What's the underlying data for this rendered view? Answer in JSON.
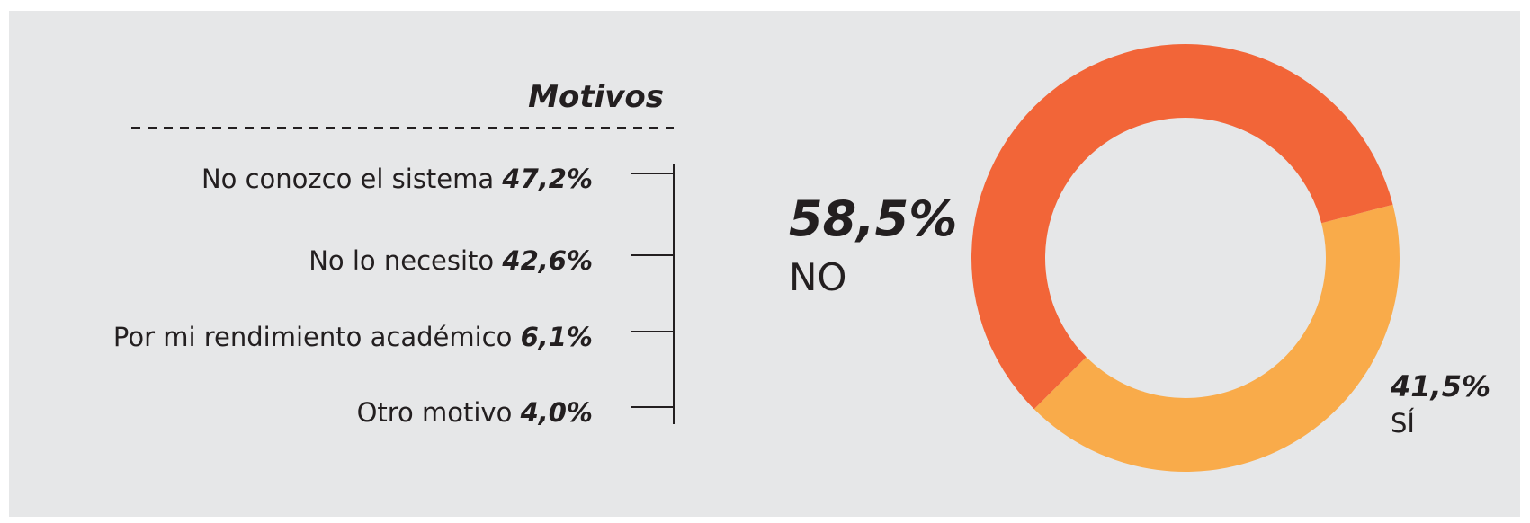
{
  "chart_data": {
    "type": "donut",
    "categories": [
      "NO",
      "SÍ"
    ],
    "values": [
      58.5,
      41.5
    ],
    "value_labels": [
      "58,5%",
      "41,5%"
    ],
    "colors": [
      "#f26538",
      "#f9ab4a"
    ]
  },
  "motives": {
    "title": "Motivos",
    "categories": [
      "No conozco el sistema",
      "No lo necesito",
      "Por mi rendimiento académico",
      "Otro motivo"
    ],
    "values": [
      47.2,
      42.6,
      6.1,
      4.0
    ],
    "value_labels": [
      "47,2%",
      "42,6%",
      "6,1%",
      "4,0%"
    ]
  }
}
